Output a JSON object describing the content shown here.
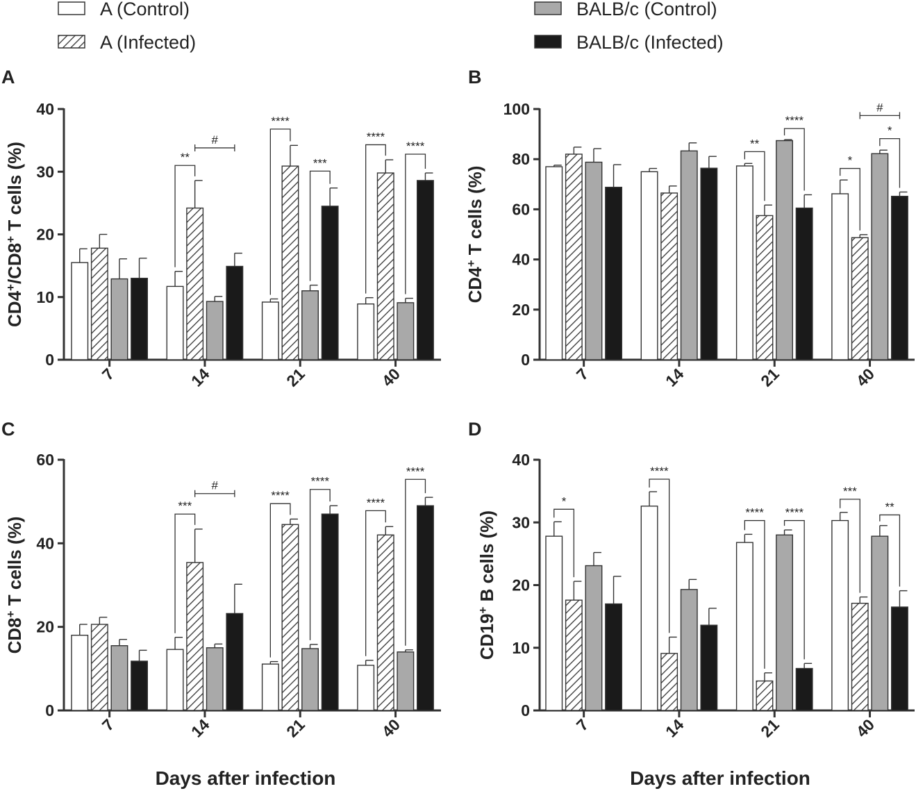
{
  "legend": [
    {
      "label": "A (Control)",
      "style": "white"
    },
    {
      "label": "A (Infected)",
      "style": "hatch"
    },
    {
      "label": "BALB/c (Control)",
      "style": "gray"
    },
    {
      "label": "BALB/c (Infected)",
      "style": "black"
    }
  ],
  "colors": {
    "white": "#ffffff",
    "gray": "#a9a9a9",
    "black": "#1a1a1a",
    "axis": "#333333",
    "hatch": "#333333"
  },
  "chart_data": [
    {
      "type": "bar",
      "panel": "A",
      "ylabel": {
        "base": "CD4",
        "sup1": "+",
        "mid": "/CD8",
        "sup2": "+",
        "tail": " T cells (%)"
      },
      "xlabel": "",
      "ylim": [
        0,
        40
      ],
      "yticks": [
        0,
        10,
        20,
        30,
        40
      ],
      "categories": [
        "7",
        "14",
        "21",
        "40"
      ],
      "series": [
        {
          "name": "A (Control)",
          "values": [
            15.5,
            11.7,
            9.2,
            8.9
          ],
          "errors": [
            2.2,
            2.4,
            0.5,
            1.0
          ]
        },
        {
          "name": "A (Infected)",
          "values": [
            17.8,
            24.2,
            30.9,
            29.8
          ],
          "errors": [
            2.2,
            4.4,
            3.3,
            2.1
          ]
        },
        {
          "name": "BALB/c (Control)",
          "values": [
            12.9,
            9.3,
            11.0,
            9.1
          ],
          "errors": [
            3.2,
            0.8,
            0.9,
            0.7
          ]
        },
        {
          "name": "BALB/c (Infected)",
          "values": [
            13.0,
            14.9,
            24.5,
            28.6
          ],
          "errors": [
            3.2,
            2.1,
            2.9,
            1.2
          ]
        }
      ],
      "significance": [
        {
          "label": "**",
          "cat": 1,
          "from": 0,
          "to": 1,
          "y": 31
        },
        {
          "label": "#",
          "cat": 1,
          "from": 1,
          "to": 3,
          "y": 33.8,
          "type": "flat"
        },
        {
          "label": "****",
          "cat": 2,
          "from": 0,
          "to": 1,
          "y": 36.8
        },
        {
          "label": "***",
          "cat": 2,
          "from": 2,
          "to": 3,
          "y": 30.1
        },
        {
          "label": "****",
          "cat": 3,
          "from": 0,
          "to": 1,
          "y": 34.3
        },
        {
          "label": "****",
          "cat": 3,
          "from": 2,
          "to": 3,
          "y": 32.8
        }
      ]
    },
    {
      "type": "bar",
      "panel": "B",
      "ylabel": {
        "base": "CD4",
        "sup1": "+",
        "mid": "",
        "sup2": "",
        "tail": " T cells (%)"
      },
      "xlabel": "",
      "ylim": [
        0,
        100
      ],
      "yticks": [
        0,
        20,
        40,
        60,
        80,
        100
      ],
      "categories": [
        "7",
        "14",
        "21",
        "40"
      ],
      "series": [
        {
          "name": "A (Control)",
          "values": [
            77,
            75,
            77.3,
            66.2
          ],
          "errors": [
            0.6,
            1.3,
            1.0,
            5.5
          ]
        },
        {
          "name": "A (Infected)",
          "values": [
            82,
            66.5,
            57.5,
            48.7
          ],
          "errors": [
            2.8,
            2.8,
            4.2,
            1.2
          ]
        },
        {
          "name": "BALB/c (Control)",
          "values": [
            78.8,
            83.3,
            87.4,
            82.2
          ],
          "errors": [
            5.4,
            3.2,
            0.4,
            1.4
          ]
        },
        {
          "name": "BALB/c (Infected)",
          "values": [
            68.8,
            76.4,
            60.5,
            65.2
          ],
          "errors": [
            9.0,
            4.7,
            5.3,
            1.7
          ]
        }
      ],
      "significance": [
        {
          "label": "**",
          "cat": 2,
          "from": 0,
          "to": 1,
          "y": 83
        },
        {
          "label": "****",
          "cat": 2,
          "from": 2,
          "to": 3,
          "y": 92.2
        },
        {
          "label": "#",
          "cat": 3,
          "from": 1,
          "to": 3,
          "y": 97.4,
          "type": "flat"
        },
        {
          "label": "*",
          "cat": 3,
          "from": 0,
          "to": 1,
          "y": 76.3
        },
        {
          "label": "*",
          "cat": 3,
          "from": 2,
          "to": 3,
          "y": 88.2
        }
      ]
    },
    {
      "type": "bar",
      "panel": "C",
      "ylabel": {
        "base": "CD8",
        "sup1": "+",
        "mid": "",
        "sup2": "",
        "tail": " T cells (%)"
      },
      "xlabel": "Days after infection",
      "ylim": [
        0,
        60
      ],
      "yticks": [
        0,
        20,
        40,
        60
      ],
      "categories": [
        "7",
        "14",
        "21",
        "40"
      ],
      "series": [
        {
          "name": "A (Control)",
          "values": [
            18,
            14.6,
            11.1,
            10.8
          ],
          "errors": [
            2.6,
            2.9,
            0.6,
            1.2
          ]
        },
        {
          "name": "A (Infected)",
          "values": [
            20.6,
            35.4,
            44.5,
            42
          ],
          "errors": [
            1.7,
            8.0,
            1.3,
            2.0
          ]
        },
        {
          "name": "BALB/c (Control)",
          "values": [
            15.5,
            15,
            14.8,
            14
          ],
          "errors": [
            1.5,
            0.9,
            1.0,
            0.5
          ]
        },
        {
          "name": "BALB/c (Infected)",
          "values": [
            11.8,
            23.2,
            47,
            49
          ],
          "errors": [
            2.6,
            7.0,
            2.0,
            2.0
          ]
        }
      ],
      "significance": [
        {
          "label": "***",
          "cat": 1,
          "from": 0,
          "to": 1,
          "y": 47
        },
        {
          "label": "#",
          "cat": 1,
          "from": 1,
          "to": 3,
          "y": 51.9,
          "type": "flat"
        },
        {
          "label": "****",
          "cat": 2,
          "from": 0,
          "to": 1,
          "y": 49.5
        },
        {
          "label": "****",
          "cat": 2,
          "from": 2,
          "to": 3,
          "y": 52.9
        },
        {
          "label": "****",
          "cat": 3,
          "from": 0,
          "to": 1,
          "y": 47.8
        },
        {
          "label": "****",
          "cat": 3,
          "from": 2,
          "to": 3,
          "y": 55.3
        }
      ]
    },
    {
      "type": "bar",
      "panel": "D",
      "ylabel": {
        "base": "CD19",
        "sup1": "+",
        "mid": "",
        "sup2": "",
        "tail": " B cells (%)"
      },
      "xlabel": "Days after infection",
      "ylim": [
        0,
        40
      ],
      "yticks": [
        0,
        10,
        20,
        30,
        40
      ],
      "categories": [
        "7",
        "14",
        "21",
        "40"
      ],
      "series": [
        {
          "name": "A (Control)",
          "values": [
            27.8,
            32.6,
            26.8,
            30.3
          ],
          "errors": [
            2.3,
            2.3,
            1.3,
            1.3
          ]
        },
        {
          "name": "A (Infected)",
          "values": [
            17.6,
            9.1,
            4.7,
            17.1
          ],
          "errors": [
            3.0,
            2.6,
            1.3,
            1.0
          ]
        },
        {
          "name": "BALB/c (Control)",
          "values": [
            23.1,
            19.3,
            28,
            27.8
          ],
          "errors": [
            2.1,
            1.6,
            0.8,
            1.7
          ]
        },
        {
          "name": "BALB/c (Infected)",
          "values": [
            17,
            13.6,
            6.7,
            16.5
          ],
          "errors": [
            4.4,
            2.7,
            0.8,
            2.6
          ]
        }
      ],
      "significance": [
        {
          "label": "*",
          "cat": 0,
          "from": 0,
          "to": 1,
          "y": 32.1
        },
        {
          "label": "****",
          "cat": 1,
          "from": 0,
          "to": 1,
          "y": 36.9
        },
        {
          "label": "****",
          "cat": 2,
          "from": 0,
          "to": 1,
          "y": 30.3
        },
        {
          "label": "****",
          "cat": 2,
          "from": 2,
          "to": 3,
          "y": 30.3
        },
        {
          "label": "***",
          "cat": 3,
          "from": 0,
          "to": 1,
          "y": 33.7
        },
        {
          "label": "**",
          "cat": 3,
          "from": 2,
          "to": 3,
          "y": 31.2
        }
      ]
    }
  ]
}
